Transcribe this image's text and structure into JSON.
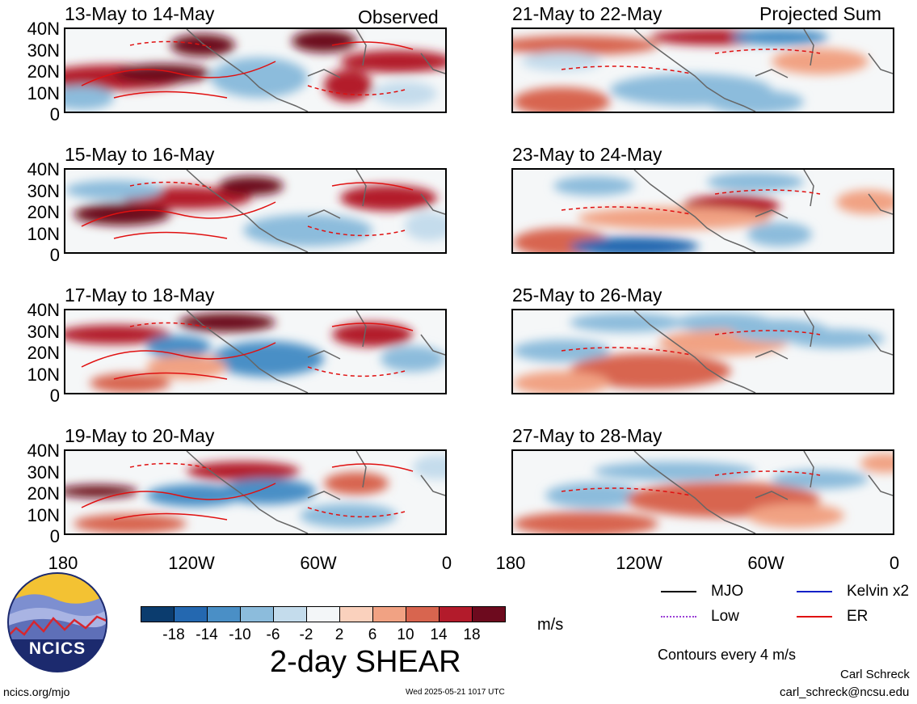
{
  "panels": [
    {
      "date": "13-May to 14-May",
      "tag": "Observed"
    },
    {
      "date": "15-May to 16-May",
      "tag": ""
    },
    {
      "date": "17-May to 18-May",
      "tag": ""
    },
    {
      "date": "19-May to 20-May",
      "tag": ""
    },
    {
      "date": "21-May to 22-May",
      "tag": "Projected Sum"
    },
    {
      "date": "23-May to 24-May",
      "tag": ""
    },
    {
      "date": "25-May to 26-May",
      "tag": ""
    },
    {
      "date": "27-May to 28-May",
      "tag": ""
    }
  ],
  "y_ticks": [
    "40N",
    "30N",
    "20N",
    "10N",
    "0"
  ],
  "x_ticks": [
    "180",
    "120W",
    "60W",
    "0"
  ],
  "colorbar": {
    "labels": [
      "-18",
      "-14",
      "-10",
      "-6",
      "-2",
      "2",
      "6",
      "10",
      "14",
      "18"
    ],
    "colors": [
      "#0b3c6e",
      "#2468b0",
      "#4a8fc6",
      "#8cbcdc",
      "#c4dcec",
      "#f3f6f8",
      "#fad1bd",
      "#f1a283",
      "#d8654f",
      "#b31b2b",
      "#6d0a1e"
    ],
    "unit": "m/s",
    "title": "2-day SHEAR"
  },
  "legend": [
    {
      "label": "MJO",
      "color": "#000000",
      "style": "solid"
    },
    {
      "label": "Kelvin x2",
      "color": "#1020c8",
      "style": "solid"
    },
    {
      "label": "Low",
      "color": "#9a3fd6",
      "style": "dotted"
    },
    {
      "label": "ER",
      "color": "#e01010",
      "style": "solid"
    }
  ],
  "contour_note": "Contours every 4 m/s",
  "logo_text": "NCICS",
  "footer": {
    "url": "ncics.org/mjo",
    "timestamp": "Wed 2025-05-21 1017 UTC",
    "author": "Carl Schreck",
    "email": "carl_schreck@ncsu.edu"
  }
}
